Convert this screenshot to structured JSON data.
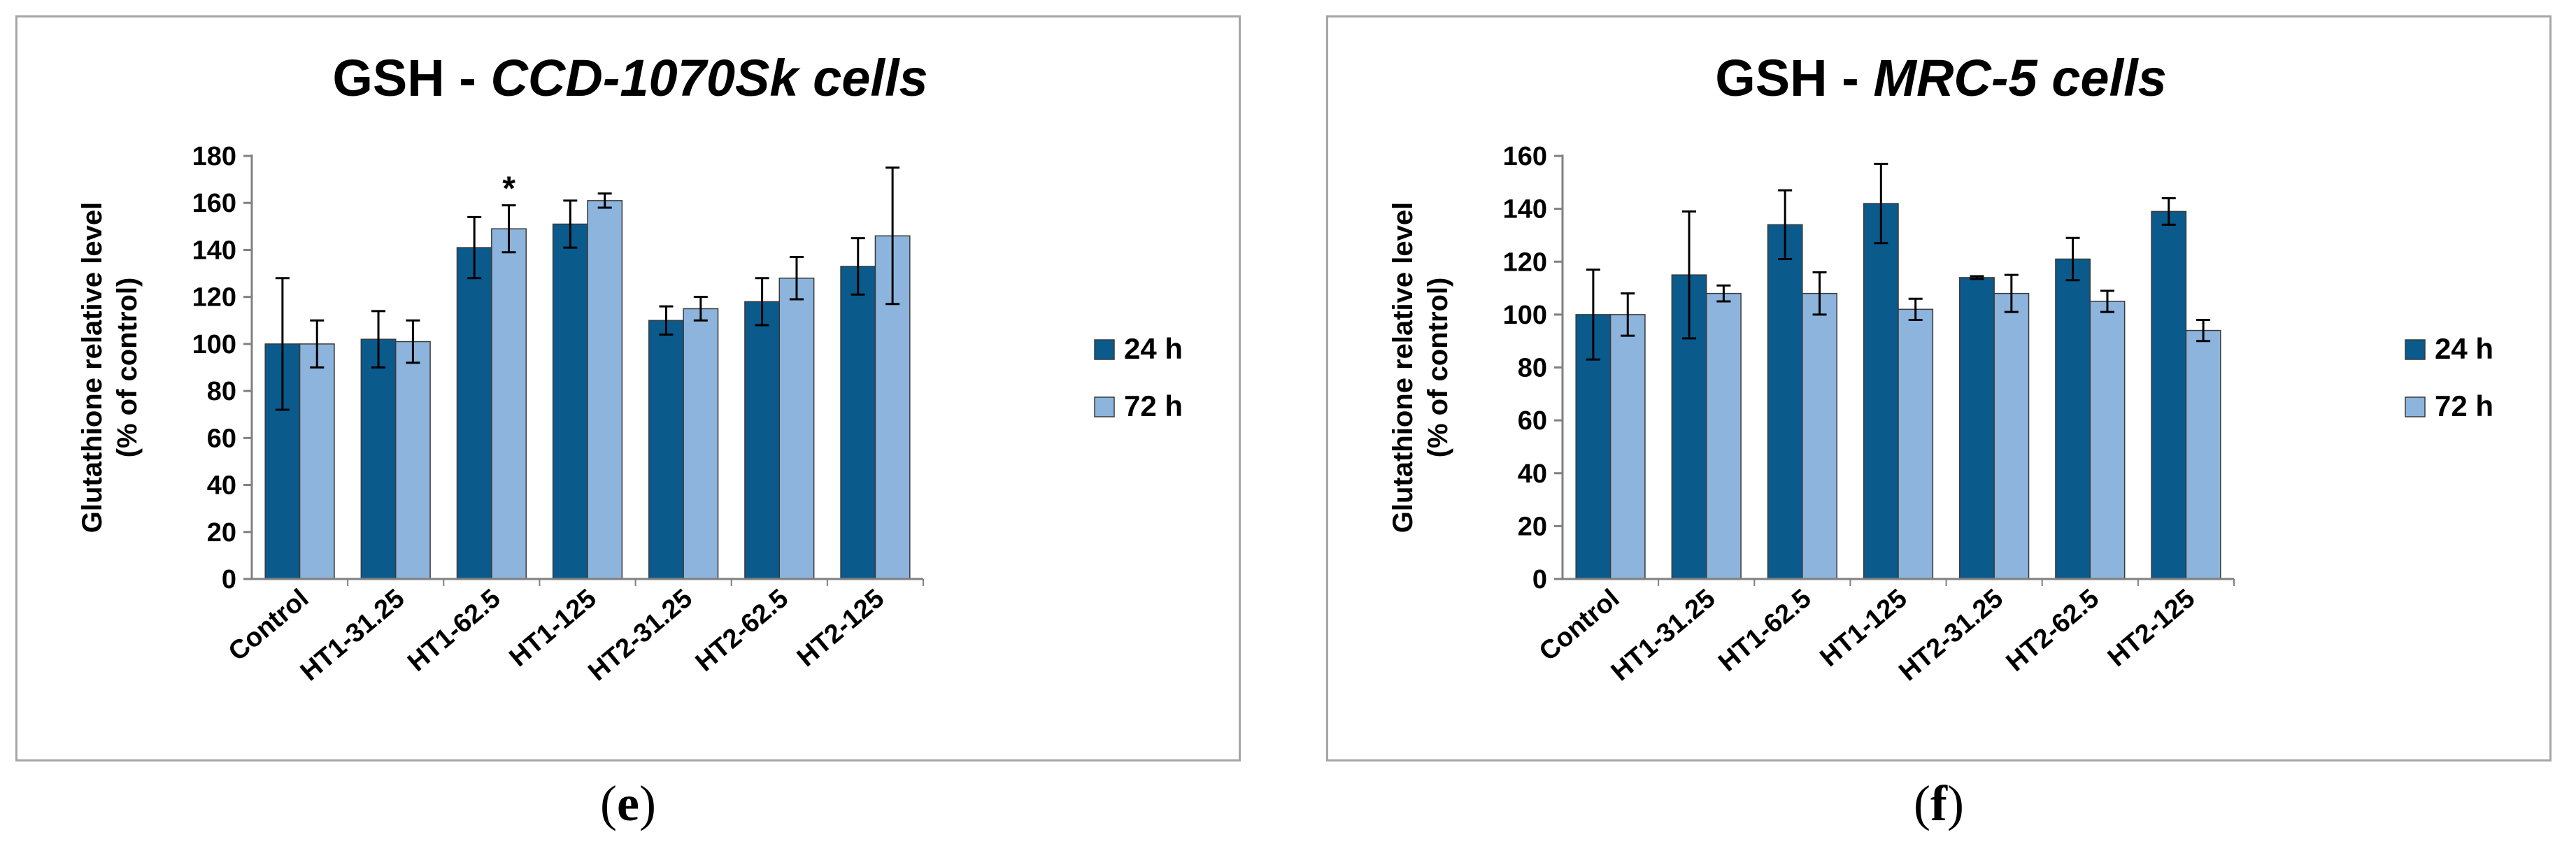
{
  "chart_data": [
    {
      "type": "bar",
      "title_prefix": "GSH - ",
      "title_italic": "CCD-1070Sk cells",
      "ylabel_line1": "Glutathione relative level",
      "ylabel_line2": "(% of control)",
      "xlabel": "",
      "ylim": [
        0,
        180
      ],
      "yticks": [
        0,
        20,
        40,
        60,
        80,
        100,
        120,
        140,
        160,
        180
      ],
      "categories": [
        "Control",
        "HT1-31.25",
        "HT1-62.5",
        "HT1-125",
        "HT2-31.25",
        "HT2-62.5",
        "HT2-125"
      ],
      "series": [
        {
          "name": "24 h",
          "color": "#0a5a8c",
          "values": [
            100,
            102,
            141,
            151,
            110,
            118,
            133
          ],
          "errors": [
            28,
            12,
            13,
            10,
            6,
            10,
            12
          ]
        },
        {
          "name": "72 h",
          "color": "#8db4dc",
          "values": [
            100,
            101,
            149,
            161,
            115,
            128,
            146
          ],
          "errors": [
            10,
            9,
            10,
            3,
            5,
            9,
            29
          ]
        }
      ],
      "annotations": [
        {
          "category": "HT1-62.5",
          "series": "72 h",
          "text": "*"
        }
      ],
      "legend_position": "right",
      "grid": false
    },
    {
      "type": "bar",
      "title_prefix": "GSH - ",
      "title_italic": "MRC-5 cells",
      "ylabel_line1": "Glutathione relative level",
      "ylabel_line2": "(% of control)",
      "xlabel": "",
      "ylim": [
        0,
        160
      ],
      "yticks": [
        0,
        20,
        40,
        60,
        80,
        100,
        120,
        140,
        160
      ],
      "categories": [
        "Control",
        "HT1-31.25",
        "HT1-62.5",
        "HT1-125",
        "HT2-31.25",
        "HT2-62.5",
        "HT2-125"
      ],
      "series": [
        {
          "name": "24 h",
          "color": "#0a5a8c",
          "values": [
            100,
            115,
            134,
            142,
            114,
            121,
            139
          ],
          "errors": [
            17,
            24,
            13,
            15,
            0.5,
            8,
            5
          ]
        },
        {
          "name": "72 h",
          "color": "#8db4dc",
          "values": [
            100,
            108,
            108,
            102,
            108,
            105,
            94
          ],
          "errors": [
            8,
            3,
            8,
            4,
            7,
            4,
            4
          ]
        }
      ],
      "annotations": [],
      "legend_position": "right",
      "grid": false
    }
  ],
  "panel_labels": [
    {
      "open": "(",
      "letter": "e",
      "close": ")"
    },
    {
      "open": "(",
      "letter": "f",
      "close": ")"
    }
  ]
}
